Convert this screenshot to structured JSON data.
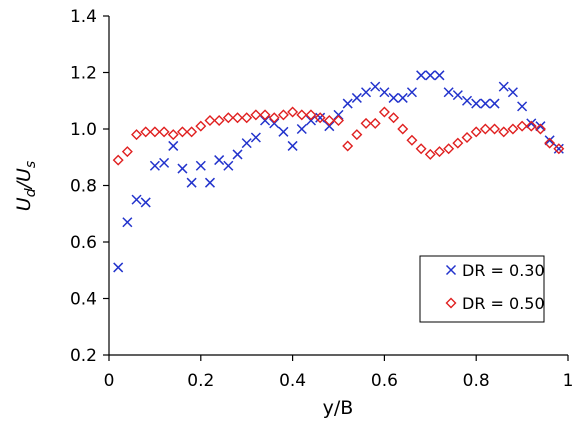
{
  "chart_data": {
    "type": "scatter",
    "xlabel": "y/B",
    "ylabel": "Ud/Us",
    "ylabel_parts": {
      "u1": "U",
      "sub1": "d",
      "slash": "/",
      "u2": "U",
      "sub2": "s"
    },
    "xlim": [
      0,
      1
    ],
    "ylim": [
      0.2,
      1.4
    ],
    "xticks": [
      0,
      0.2,
      0.4,
      0.6,
      0.8,
      1
    ],
    "yticks": [
      0.2,
      0.4,
      0.6,
      0.8,
      1.0,
      1.2,
      1.4
    ],
    "xtick_labels": [
      "0",
      "0.2",
      "0.4",
      "0.6",
      "0.8",
      "1"
    ],
    "ytick_labels": [
      "0.2",
      "0.4",
      "0.6",
      "0.8",
      "1.0",
      "1.2",
      "1.4"
    ],
    "grid": false,
    "legend_position": "bottom-right",
    "series": [
      {
        "name": "DR = 0.30",
        "marker": "x",
        "color": "#2233cc",
        "x": [
          0.02,
          0.04,
          0.06,
          0.08,
          0.1,
          0.12,
          0.14,
          0.16,
          0.18,
          0.2,
          0.22,
          0.24,
          0.26,
          0.28,
          0.3,
          0.32,
          0.34,
          0.36,
          0.38,
          0.4,
          0.42,
          0.44,
          0.46,
          0.48,
          0.5,
          0.52,
          0.54,
          0.56,
          0.58,
          0.6,
          0.62,
          0.64,
          0.66,
          0.68,
          0.7,
          0.72,
          0.74,
          0.76,
          0.78,
          0.8,
          0.82,
          0.84,
          0.86,
          0.88,
          0.9,
          0.92,
          0.94,
          0.96,
          0.98
        ],
        "y": [
          0.51,
          0.67,
          0.75,
          0.74,
          0.87,
          0.88,
          0.94,
          0.86,
          0.81,
          0.87,
          0.81,
          0.89,
          0.87,
          0.91,
          0.95,
          0.97,
          1.03,
          1.02,
          0.99,
          0.94,
          1.0,
          1.03,
          1.04,
          1.01,
          1.05,
          1.09,
          1.11,
          1.13,
          1.15,
          1.13,
          1.11,
          1.11,
          1.13,
          1.19,
          1.19,
          1.19,
          1.13,
          1.12,
          1.1,
          1.09,
          1.09,
          1.09,
          1.15,
          1.13,
          1.08,
          1.02,
          1.01,
          0.96,
          0.93
        ]
      },
      {
        "name": "DR = 0.50",
        "marker": "diamond",
        "color": "#e02020",
        "x": [
          0.02,
          0.04,
          0.06,
          0.08,
          0.1,
          0.12,
          0.14,
          0.16,
          0.18,
          0.2,
          0.22,
          0.24,
          0.26,
          0.28,
          0.3,
          0.32,
          0.34,
          0.36,
          0.38,
          0.4,
          0.42,
          0.44,
          0.46,
          0.48,
          0.5,
          0.52,
          0.54,
          0.56,
          0.58,
          0.6,
          0.62,
          0.64,
          0.66,
          0.68,
          0.7,
          0.72,
          0.74,
          0.76,
          0.78,
          0.8,
          0.82,
          0.84,
          0.86,
          0.88,
          0.9,
          0.92,
          0.94,
          0.96,
          0.98
        ],
        "y": [
          0.89,
          0.92,
          0.98,
          0.99,
          0.99,
          0.99,
          0.98,
          0.99,
          0.99,
          1.01,
          1.03,
          1.03,
          1.04,
          1.04,
          1.04,
          1.05,
          1.05,
          1.04,
          1.05,
          1.06,
          1.05,
          1.05,
          1.04,
          1.03,
          1.03,
          0.94,
          0.98,
          1.02,
          1.02,
          1.06,
          1.04,
          1.0,
          0.96,
          0.93,
          0.91,
          0.92,
          0.93,
          0.95,
          0.97,
          0.99,
          1.0,
          1.0,
          0.99,
          1.0,
          1.01,
          1.01,
          1.0,
          0.95,
          0.93
        ]
      }
    ]
  }
}
